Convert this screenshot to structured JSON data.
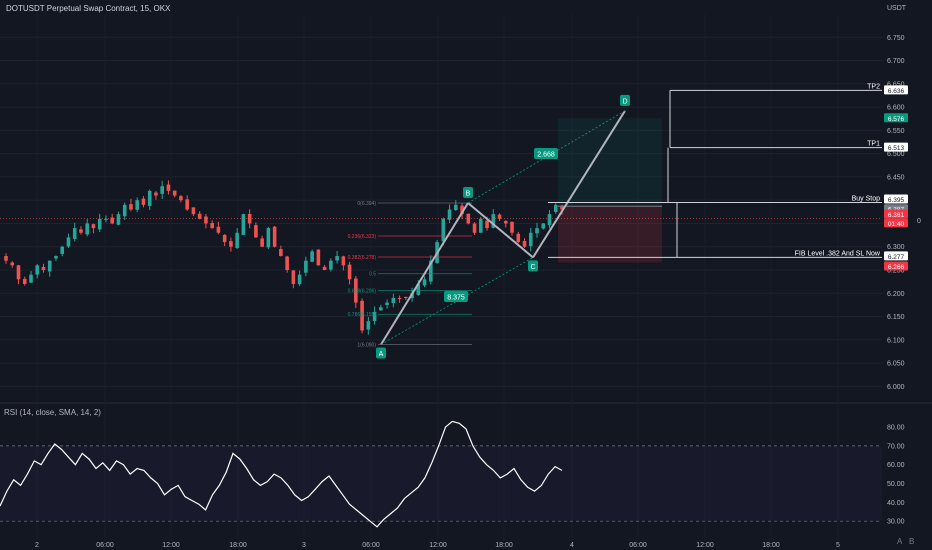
{
  "header": {
    "title": "DOTUSDT Perpetual Swap Contract, 15, OKX",
    "currency": "USDT",
    "rsi_title": "RSI (14, close, SMA, 14, 2)",
    "right_zero": "0",
    "bottom_right": [
      "A",
      "B"
    ]
  },
  "colors": {
    "background": "#131722",
    "up": "#26a69a",
    "down": "#ef5350",
    "pattern": "#b2b5be",
    "rsi": "#ffffff",
    "teal_label": "#089981",
    "red_label": "#f23645"
  },
  "chart_data": [
    {
      "type": "candlestick",
      "title": "DOTUSDT Perpetual Swap Contract, 15, OKX",
      "ylim": [
        5.975,
        6.8
      ],
      "y_ticks": [
        "6.000",
        "6.050",
        "6.100",
        "6.150",
        "6.200",
        "6.250",
        "6.300",
        "6.350",
        "6.400",
        "6.450",
        "6.500",
        "6.550",
        "6.600",
        "6.650",
        "6.700",
        "6.750"
      ],
      "x_ticks": [
        "2",
        "06:00",
        "12:00",
        "18:00",
        "3",
        "06:00",
        "12:00",
        "18:00",
        "4",
        "06:00",
        "12:00",
        "18:00",
        "5"
      ],
      "close_path": [
        6.27,
        6.26,
        6.23,
        6.22,
        6.24,
        6.26,
        6.25,
        6.27,
        6.28,
        6.3,
        6.32,
        6.34,
        6.33,
        6.35,
        6.34,
        6.36,
        6.36,
        6.35,
        6.37,
        6.39,
        6.38,
        6.4,
        6.39,
        6.42,
        6.41,
        6.43,
        6.42,
        6.41,
        6.4,
        6.38,
        6.37,
        6.36,
        6.35,
        6.34,
        6.33,
        6.31,
        6.3,
        6.33,
        6.37,
        6.35,
        6.32,
        6.3,
        6.34,
        6.3,
        6.28,
        6.25,
        6.22,
        6.24,
        6.27,
        6.29,
        6.26,
        6.25,
        6.27,
        6.28,
        6.26,
        6.23,
        6.18,
        6.12,
        6.14,
        6.16,
        6.17,
        6.18,
        6.19,
        6.19,
        6.19,
        6.2,
        6.22,
        6.23,
        6.27,
        6.31,
        6.36,
        6.38,
        6.39,
        6.37,
        6.35,
        6.33,
        6.36,
        6.34,
        6.37,
        6.36,
        6.35,
        6.33,
        6.31,
        6.3,
        6.33,
        6.34,
        6.35,
        6.37,
        6.39,
        6.38
      ],
      "series": [
        {
          "name": "Entry",
          "value": 6.387
        },
        {
          "name": "Last price",
          "value": 6.361
        }
      ],
      "annotations": {
        "pattern_points": [
          {
            "label": "A",
            "value": 6.09
          },
          {
            "label": "B",
            "value": 6.394
          },
          {
            "label": "C",
            "value": 6.277
          },
          {
            "label": "D",
            "value": 6.592
          }
        ],
        "pattern_ratios": [
          "2.668",
          "8.375"
        ],
        "fib_levels": [
          {
            "label": "0(6.394)",
            "value": 6.394
          },
          {
            "label": "0.236(6.323)",
            "value": 6.323
          },
          {
            "label": "0.382(6.278)",
            "value": 6.278
          },
          {
            "label": "0.5",
            "value": 6.242
          },
          {
            "label": "0.618(6.206)",
            "value": 6.206
          },
          {
            "label": "0.786(6.155)",
            "value": 6.155
          },
          {
            "label": "1(6.090)",
            "value": 6.09
          }
        ],
        "levels": [
          {
            "label": "TP2",
            "value": 6.636
          },
          {
            "label": "TP1",
            "value": 6.513
          },
          {
            "label": "Buy Stop",
            "value": 6.395
          },
          {
            "label": "FIB Level .382 And SL Now",
            "value": 6.277
          }
        ],
        "price_tags": [
          {
            "text": "6.636"
          },
          {
            "text": "6.576"
          },
          {
            "text": "6.513"
          },
          {
            "text": "6.395"
          },
          {
            "text": "6.387"
          },
          {
            "text": "6.361"
          },
          {
            "text": "01:40"
          },
          {
            "text": "6.277"
          },
          {
            "text": "6.266"
          }
        ]
      }
    },
    {
      "type": "line",
      "title": "RSI (14, close, SMA, 14, 2)",
      "ylim": [
        20,
        88
      ],
      "y_ticks": [
        "30.00",
        "40.00",
        "50.00",
        "60.00",
        "70.00",
        "80.00"
      ],
      "guide_levels": [
        70,
        30
      ],
      "values": [
        38,
        46,
        52,
        49,
        55,
        62,
        60,
        66,
        71,
        68,
        64,
        60,
        66,
        63,
        58,
        61,
        57,
        62,
        60,
        55,
        58,
        57,
        53,
        50,
        44,
        47,
        49,
        43,
        41,
        39,
        36,
        44,
        49,
        56,
        66,
        63,
        58,
        52,
        49,
        51,
        55,
        53,
        49,
        44,
        41,
        43,
        47,
        51,
        54,
        49,
        44,
        39,
        36,
        33,
        30,
        27,
        31,
        34,
        37,
        42,
        45,
        48,
        53,
        61,
        70,
        80,
        83,
        82,
        79,
        70,
        64,
        60,
        57,
        53,
        55,
        58,
        52,
        48,
        46,
        49,
        55,
        59,
        57
      ]
    }
  ]
}
